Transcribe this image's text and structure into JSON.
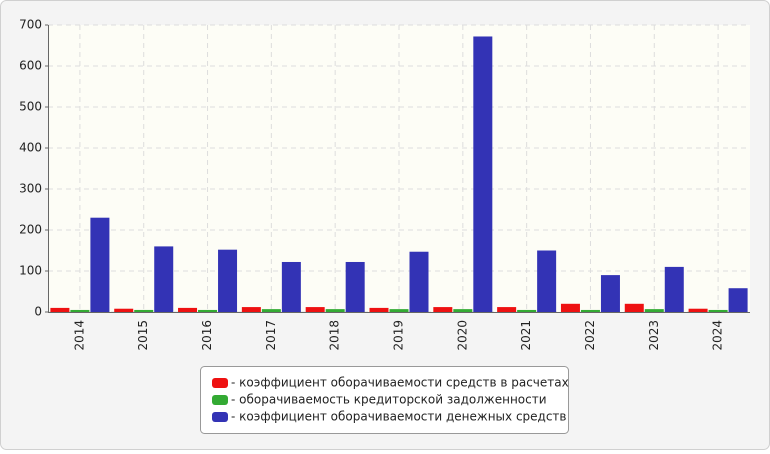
{
  "chart_data": {
    "type": "bar",
    "categories": [
      "2014",
      "2015",
      "2016",
      "2017",
      "2018",
      "2019",
      "2020",
      "2021",
      "2022",
      "2023",
      "2024"
    ],
    "series": [
      {
        "name": "- коэффициент оборачиваемости средств в расчетах",
        "color": "#ee1111",
        "values": [
          10,
          8,
          10,
          12,
          12,
          10,
          12,
          12,
          20,
          20,
          8
        ]
      },
      {
        "name": "- оборачиваемость кредиторской задолженности",
        "color": "#33aa33",
        "values": [
          5,
          5,
          5,
          7,
          7,
          7,
          7,
          5,
          5,
          7,
          5
        ]
      },
      {
        "name": "- коэффициент оборачиваемости денежных средств",
        "color": "#3333b5",
        "values": [
          230,
          160,
          152,
          122,
          122,
          147,
          672,
          150,
          90,
          110,
          58
        ]
      }
    ],
    "ylim": [
      0,
      700
    ],
    "yticks": [
      0,
      100,
      200,
      300,
      400,
      500,
      600,
      700
    ],
    "grid": true,
    "legend": "bottom"
  }
}
